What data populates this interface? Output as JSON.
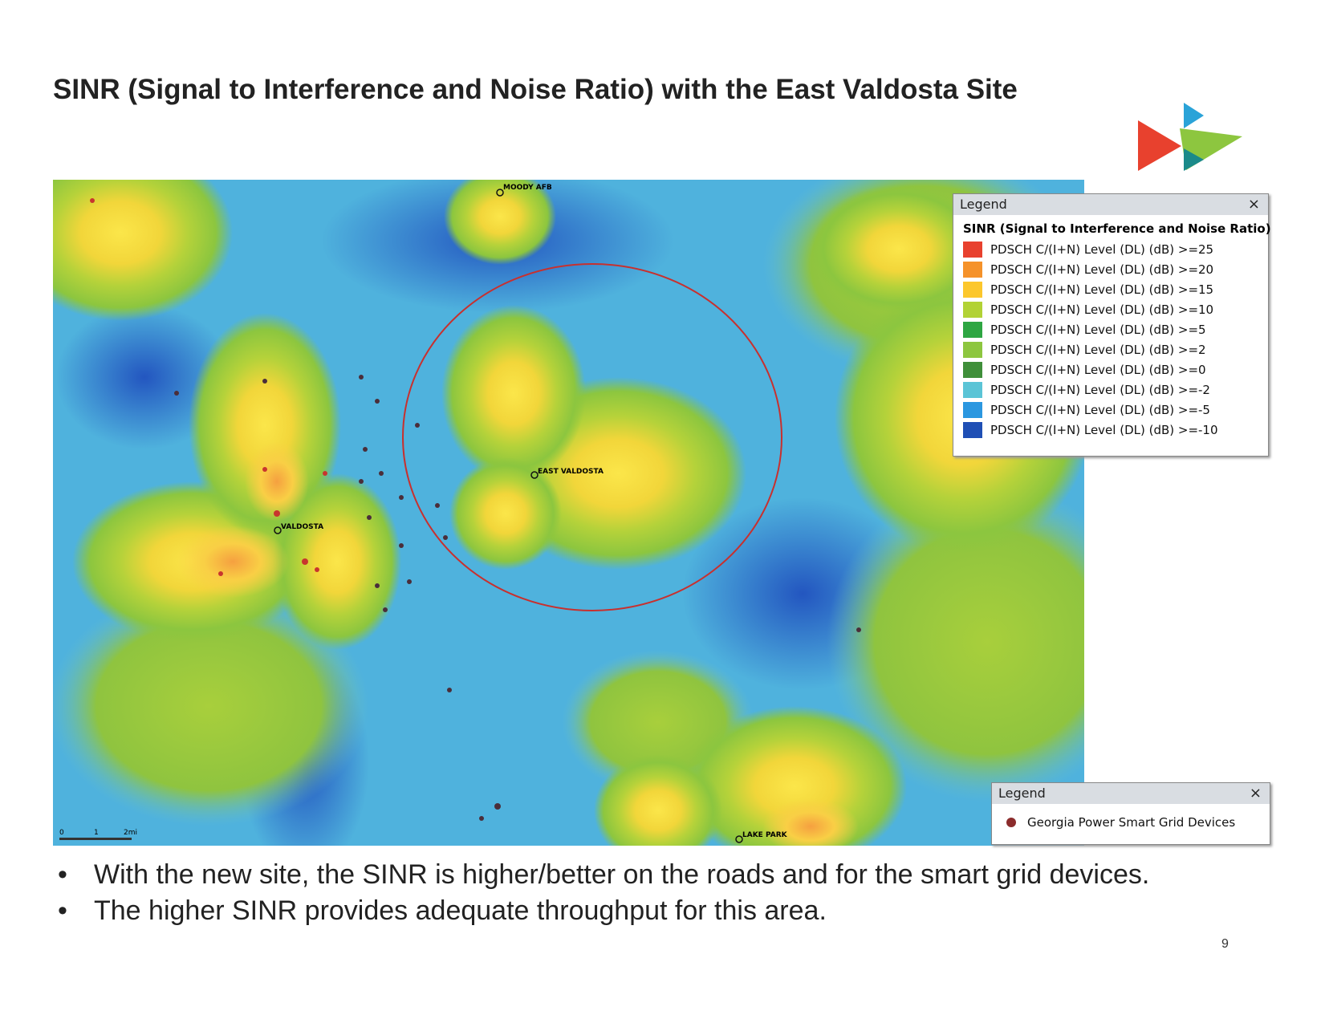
{
  "header": {
    "title": "SINR (Signal to Interference and Noise Ratio) with the East Valdosta Site"
  },
  "map": {
    "sites": [
      "MOODY AFB",
      "EAST VALDOSTA",
      "VALDOSTA",
      "LAKE PARK"
    ],
    "scale": [
      "0",
      "1",
      "2mi"
    ],
    "sinr_legend": {
      "title": "Legend",
      "heading": "SINR (Signal to Interference and Noise Ratio)",
      "items": [
        {
          "label": "PDSCH C/(I+N) Level (DL) (dB) >=25",
          "color": "#e8412e"
        },
        {
          "label": "PDSCH C/(I+N) Level (DL) (dB) >=20",
          "color": "#f5922a"
        },
        {
          "label": "PDSCH C/(I+N) Level (DL) (dB) >=15",
          "color": "#fcc72c"
        },
        {
          "label": "PDSCH C/(I+N) Level (DL) (dB) >=10",
          "color": "#b2d235"
        },
        {
          "label": "PDSCH C/(I+N) Level (DL) (dB) >=5",
          "color": "#2ea642"
        },
        {
          "label": "PDSCH C/(I+N) Level (DL) (dB) >=2",
          "color": "#8dc63f"
        },
        {
          "label": "PDSCH C/(I+N) Level (DL) (dB) >=0",
          "color": "#3f8f3a"
        },
        {
          "label": "PDSCH C/(I+N) Level (DL) (dB) >=-2",
          "color": "#5bc4d6"
        },
        {
          "label": "PDSCH C/(I+N) Level (DL) (dB) >=-5",
          "color": "#2b97e0"
        },
        {
          "label": "PDSCH C/(I+N) Level (DL) (dB) >=-10",
          "color": "#1f4fb5"
        }
      ]
    },
    "device_legend": {
      "title": "Legend",
      "item": "Georgia Power Smart Grid Devices"
    }
  },
  "bullets": [
    "With the new site, the SINR is higher/better on the roads and for the smart grid devices.",
    "The higher SINR provides adequate throughput for this area."
  ],
  "page_number": "9"
}
